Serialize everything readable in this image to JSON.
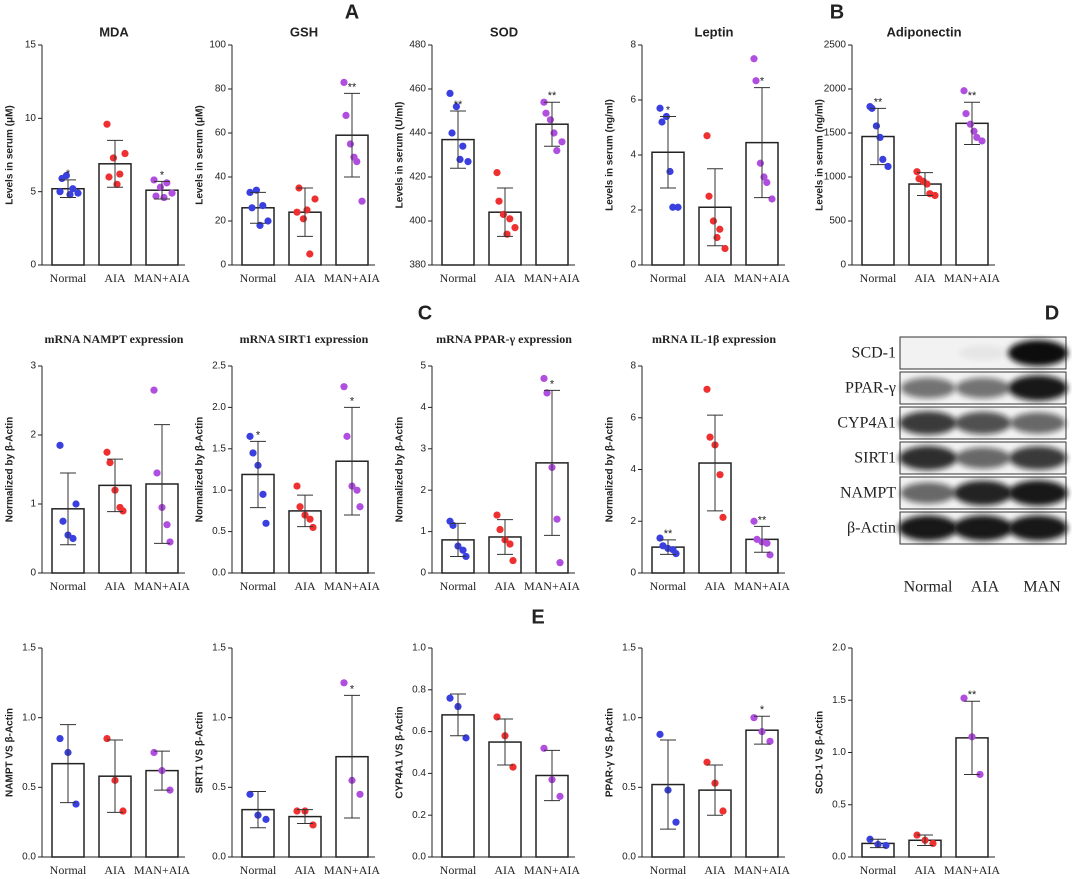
{
  "panel_labels": [
    "A",
    "B",
    "C",
    "D",
    "E"
  ],
  "blot": {
    "rows": [
      "SCD-1",
      "PPAR-γ",
      "CYP4A1",
      "SIRT1",
      "NAMPT",
      "β-Actin"
    ],
    "lanes": [
      "Normal",
      "AIA",
      "MAN"
    ]
  },
  "chart_data": [
    {
      "type": "bar",
      "title": "MDA",
      "y_label": "Levels in serum (μM)",
      "categories": [
        "Normal",
        "AIA",
        "MAN+AIA"
      ],
      "values": [
        5.2,
        6.9,
        5.1
      ],
      "errors": [
        0.6,
        1.6,
        0.6
      ],
      "points": [
        [
          5.0,
          5.9,
          6.1,
          4.8,
          5.2,
          4.9
        ],
        [
          9.6,
          6.0,
          7.3,
          5.5,
          6.2,
          7.6
        ],
        [
          5.8,
          4.7,
          5.3,
          4.6,
          5.6,
          4.9
        ]
      ],
      "annotations": [
        "*",
        null,
        "*"
      ],
      "colors": [
        "#3a3fe0",
        "#ee3030",
        "#b04ee0"
      ],
      "ylim": [
        0,
        15
      ],
      "yticks": [
        0,
        5,
        10,
        15
      ]
    },
    {
      "type": "bar",
      "title": "GSH",
      "y_label": "Levels in serum (μM)",
      "categories": [
        "Normal",
        "AIA",
        "MAN+AIA"
      ],
      "values": [
        26,
        24,
        59
      ],
      "errors": [
        7,
        11,
        19
      ],
      "points": [
        [
          33,
          26,
          34,
          18,
          27,
          20
        ],
        [
          24,
          35,
          21,
          25,
          5,
          30
        ],
        [
          83,
          68,
          55,
          49,
          47,
          29
        ]
      ],
      "annotations": [
        null,
        null,
        "**"
      ],
      "colors": [
        "#3a3fe0",
        "#ee3030",
        "#b04ee0"
      ],
      "ylim": [
        0,
        100
      ],
      "yticks": [
        0,
        20,
        40,
        60,
        80,
        100
      ]
    },
    {
      "type": "bar",
      "title": "SOD",
      "y_label": "Levels in serum (U/ml)",
      "categories": [
        "Normal",
        "AIA",
        "MAN+AIA"
      ],
      "values": [
        437,
        404,
        444
      ],
      "errors": [
        13,
        11,
        10
      ],
      "points": [
        [
          458,
          440,
          452,
          428,
          434,
          427
        ],
        [
          422,
          409,
          403,
          394,
          401,
          397
        ],
        [
          454,
          449,
          446,
          440,
          432,
          436
        ]
      ],
      "annotations": [
        "**",
        null,
        "**"
      ],
      "colors": [
        "#3a3fe0",
        "#ee3030",
        "#b04ee0"
      ],
      "ylim": [
        380,
        480
      ],
      "yticks": [
        380,
        400,
        420,
        440,
        460,
        480
      ]
    },
    {
      "type": "bar",
      "title": "Leptin",
      "y_label": "Levels in serum (ng/ml)",
      "categories": [
        "Normal",
        "AIA",
        "MAN+AIA"
      ],
      "values": [
        4.1,
        2.1,
        4.45
      ],
      "errors": [
        1.3,
        1.4,
        2.0
      ],
      "points": [
        [
          5.7,
          5.2,
          5.4,
          3.4,
          2.1,
          2.1
        ],
        [
          4.7,
          2.5,
          1.6,
          1.0,
          1.3,
          0.6
        ],
        [
          7.5,
          6.7,
          3.7,
          3.2,
          3.0,
          2.4
        ]
      ],
      "annotations": [
        "*",
        null,
        "*"
      ],
      "colors": [
        "#3a3fe0",
        "#ee3030",
        "#b04ee0"
      ],
      "ylim": [
        0,
        8
      ],
      "yticks": [
        0,
        2,
        4,
        6,
        8
      ]
    },
    {
      "type": "bar",
      "title": "Adiponectin",
      "y_label": "Levels in serum (ng/ml)",
      "categories": [
        "Normal",
        "AIA",
        "MAN+AIA"
      ],
      "values": [
        1460,
        920,
        1610
      ],
      "errors": [
        320,
        130,
        240
      ],
      "points": [
        [
          1800,
          1780,
          1580,
          1450,
          1200,
          1120
        ],
        [
          1060,
          980,
          950,
          920,
          810,
          790
        ],
        [
          1980,
          1720,
          1600,
          1520,
          1450,
          1410
        ]
      ],
      "annotations": [
        "**",
        null,
        "**"
      ],
      "colors": [
        "#3a3fe0",
        "#ee3030",
        "#b04ee0"
      ],
      "ylim": [
        0,
        2500
      ],
      "yticks": [
        0,
        500,
        1000,
        1500,
        2000,
        2500
      ]
    },
    {
      "type": "bar",
      "title": "mRNA NAMPT expression",
      "y_label": "Normalized by β-Actin",
      "categories": [
        "Normal",
        "AIA",
        "MAN+AIA"
      ],
      "values": [
        0.93,
        1.27,
        1.29
      ],
      "errors": [
        0.52,
        0.38,
        0.86
      ],
      "points": [
        [
          1.85,
          0.75,
          0.55,
          0.5,
          1.0
        ],
        [
          1.75,
          1.6,
          1.2,
          0.95,
          0.9
        ],
        [
          2.65,
          1.45,
          0.95,
          0.7,
          0.45
        ]
      ],
      "colors": [
        "#3a3fe0",
        "#ee3030",
        "#b04ee0"
      ],
      "ylim": [
        0,
        3
      ],
      "yticks": [
        0,
        1,
        2,
        3
      ]
    },
    {
      "type": "bar",
      "title": "mRNA SIRT1 expression",
      "y_label": "Normalized by β-Actin",
      "categories": [
        "Normal",
        "AIA",
        "MAN+AIA"
      ],
      "values": [
        1.19,
        0.75,
        1.35
      ],
      "errors": [
        0.4,
        0.19,
        0.65
      ],
      "points": [
        [
          1.65,
          1.45,
          1.3,
          0.95,
          0.6
        ],
        [
          1.05,
          0.8,
          0.7,
          0.65,
          0.55
        ],
        [
          2.25,
          1.65,
          1.05,
          1.0,
          0.8
        ]
      ],
      "annotations": [
        "*",
        null,
        "*"
      ],
      "colors": [
        "#3a3fe0",
        "#ee3030",
        "#b04ee0"
      ],
      "ylim": [
        0,
        2.5
      ],
      "yticks": [
        {
          "value": 0,
          "label": "0.0"
        },
        0.5,
        {
          "value": 1,
          "label": "1.0"
        },
        1.5,
        {
          "value": 2,
          "label": "2.0"
        },
        2.5
      ]
    },
    {
      "type": "bar",
      "title": "mRNA PPAR-γ expression",
      "y_label": "Normalized by β-Actin",
      "categories": [
        "Normal",
        "AIA",
        "MAN+AIA"
      ],
      "values": [
        0.8,
        0.87,
        2.66
      ],
      "errors": [
        0.4,
        0.42,
        1.75
      ],
      "points": [
        [
          1.25,
          1.15,
          0.65,
          0.55,
          0.4
        ],
        [
          1.4,
          1.05,
          0.8,
          0.7,
          0.3
        ],
        [
          4.7,
          4.35,
          2.55,
          1.3,
          0.25
        ]
      ],
      "annotations": [
        null,
        null,
        "*"
      ],
      "colors": [
        "#3a3fe0",
        "#ee3030",
        "#b04ee0"
      ],
      "ylim": [
        0,
        5
      ],
      "yticks": [
        0,
        1,
        2,
        3,
        4,
        5
      ]
    },
    {
      "type": "bar",
      "title": "mRNA  IL-1β expression",
      "y_label": "Normalized by β-Actin",
      "categories": [
        "Normal",
        "AIA",
        "MAN+AIA"
      ],
      "values": [
        1.0,
        4.25,
        1.3
      ],
      "errors": [
        0.28,
        1.85,
        0.5
      ],
      "points": [
        [
          1.35,
          1.05,
          0.95,
          0.9,
          0.75
        ],
        [
          7.1,
          5.25,
          4.95,
          3.8,
          2.15
        ],
        [
          2.0,
          1.3,
          1.2,
          1.15,
          0.7
        ]
      ],
      "annotations": [
        "**",
        null,
        "**"
      ],
      "colors": [
        "#3a3fe0",
        "#ee3030",
        "#b04ee0"
      ],
      "ylim": [
        0,
        8
      ],
      "yticks": [
        0,
        2,
        4,
        6,
        8
      ]
    },
    {
      "type": "bar",
      "y_label": "NAMPT VS β-Actin",
      "categories": [
        "Normal",
        "AIA",
        "MAN+AIA"
      ],
      "values": [
        0.67,
        0.58,
        0.62
      ],
      "errors": [
        0.28,
        0.26,
        0.14
      ],
      "points": [
        [
          0.85,
          0.75,
          0.38
        ],
        [
          0.85,
          0.55,
          0.33
        ],
        [
          0.75,
          0.62,
          0.48
        ]
      ],
      "colors": [
        "#3a3fe0",
        "#ee3030",
        "#b04ee0"
      ],
      "ylim": [
        0,
        1.5
      ],
      "yticks": [
        {
          "value": 0,
          "label": "0.0"
        },
        0.5,
        {
          "value": 1,
          "label": "1.0"
        },
        1.5
      ]
    },
    {
      "type": "bar",
      "y_label": "SIRT1 VS β-Actin",
      "categories": [
        "Normal",
        "AIA",
        "MAN+AIA"
      ],
      "values": [
        0.34,
        0.29,
        0.72
      ],
      "errors": [
        0.13,
        0.05,
        0.44
      ],
      "points": [
        [
          0.45,
          0.3,
          0.27
        ],
        [
          0.33,
          0.33,
          0.23
        ],
        [
          1.25,
          0.55,
          0.45
        ]
      ],
      "annotations": [
        null,
        null,
        "*"
      ],
      "colors": [
        "#3a3fe0",
        "#ee3030",
        "#b04ee0"
      ],
      "ylim": [
        0,
        1.5
      ],
      "yticks": [
        {
          "value": 0,
          "label": "0.0"
        },
        0.5,
        {
          "value": 1,
          "label": "1.0"
        },
        1.5
      ]
    },
    {
      "type": "bar",
      "y_label": "CYP4A1 VS β-Actin",
      "categories": [
        "Normal",
        "AIA",
        "MAN+AIA"
      ],
      "values": [
        0.68,
        0.55,
        0.39
      ],
      "errors": [
        0.1,
        0.11,
        0.12
      ],
      "points": [
        [
          0.76,
          0.72,
          0.57
        ],
        [
          0.67,
          0.58,
          0.43
        ],
        [
          0.52,
          0.37,
          0.29
        ]
      ],
      "colors": [
        "#3a3fe0",
        "#ee3030",
        "#b04ee0"
      ],
      "ylim": [
        0,
        1
      ],
      "yticks": [
        {
          "value": 0,
          "label": "0.0"
        },
        0.2,
        0.4,
        0.6,
        0.8,
        {
          "value": 1,
          "label": "1.0"
        }
      ]
    },
    {
      "type": "bar",
      "y_label": "PPAR-γ VS β-Actin",
      "categories": [
        "Normal",
        "AIA",
        "MAN+AIA"
      ],
      "values": [
        0.52,
        0.48,
        0.91
      ],
      "errors": [
        0.32,
        0.18,
        0.1
      ],
      "points": [
        [
          0.88,
          0.48,
          0.25
        ],
        [
          0.68,
          0.53,
          0.33
        ],
        [
          1.0,
          0.9,
          0.83
        ]
      ],
      "annotations": [
        null,
        null,
        "*"
      ],
      "colors": [
        "#3a3fe0",
        "#ee3030",
        "#b04ee0"
      ],
      "ylim": [
        0,
        1.5
      ],
      "yticks": [
        {
          "value": 0,
          "label": "0.0"
        },
        0.5,
        {
          "value": 1,
          "label": "1.0"
        },
        1.5
      ]
    },
    {
      "type": "bar",
      "y_label": "SCD-1 VS β-Actin",
      "categories": [
        "Normal",
        "AIA",
        "MAN+AIA"
      ],
      "values": [
        0.13,
        0.16,
        1.14
      ],
      "errors": [
        0.04,
        0.05,
        0.35
      ],
      "points": [
        [
          0.17,
          0.12,
          0.11
        ],
        [
          0.21,
          0.16,
          0.13
        ],
        [
          1.52,
          1.15,
          0.79
        ]
      ],
      "annotations": [
        null,
        null,
        "**"
      ],
      "colors": [
        "#3a3fe0",
        "#ee3030",
        "#b04ee0"
      ],
      "ylim": [
        0,
        2
      ],
      "yticks": [
        {
          "value": 0,
          "label": "0.0"
        },
        0.5,
        {
          "value": 1,
          "label": "1.0"
        },
        1.5,
        {
          "value": 2,
          "label": "2.0"
        }
      ]
    }
  ]
}
